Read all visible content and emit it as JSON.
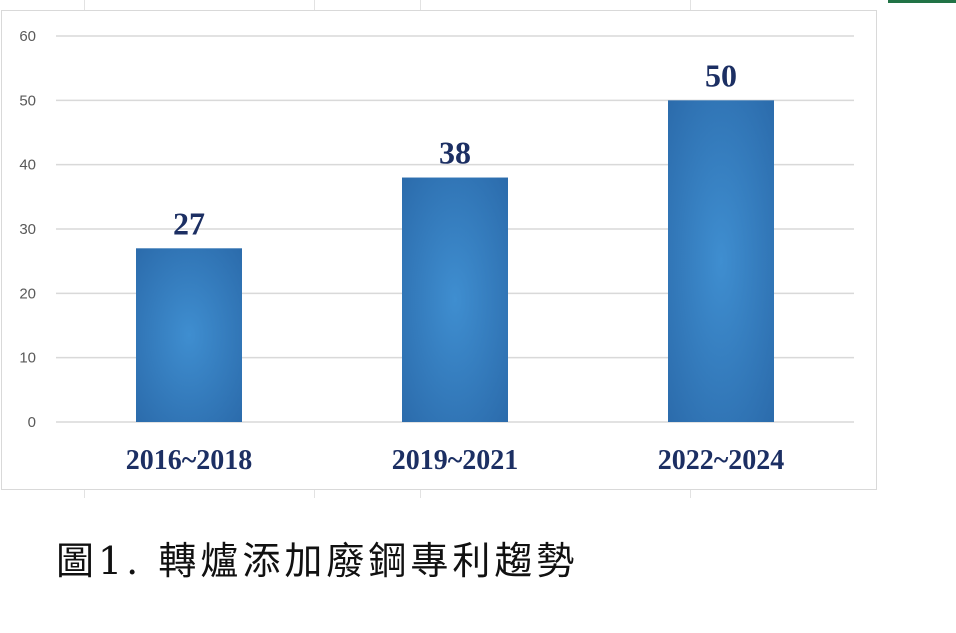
{
  "caption": "圖1. 轉爐添加廢鋼專利趨勢",
  "colors": {
    "bar_center": "#3f8ed0",
    "bar_edge": "#2a69a9",
    "label_text": "#1c2f63",
    "gridline": "#d9d9d9",
    "tick_text": "#595959"
  },
  "chart_data": {
    "type": "bar",
    "categories": [
      "2016~2018",
      "2019~2021",
      "2022~2024"
    ],
    "values": [
      27,
      38,
      50
    ],
    "data_labels": [
      "27",
      "38",
      "50"
    ],
    "title": "",
    "xlabel": "",
    "ylabel": "",
    "ylim": [
      0,
      60
    ],
    "yticks": [
      "0",
      "10",
      "20",
      "30",
      "40",
      "50",
      "60"
    ],
    "grid": true,
    "legend": "none"
  }
}
